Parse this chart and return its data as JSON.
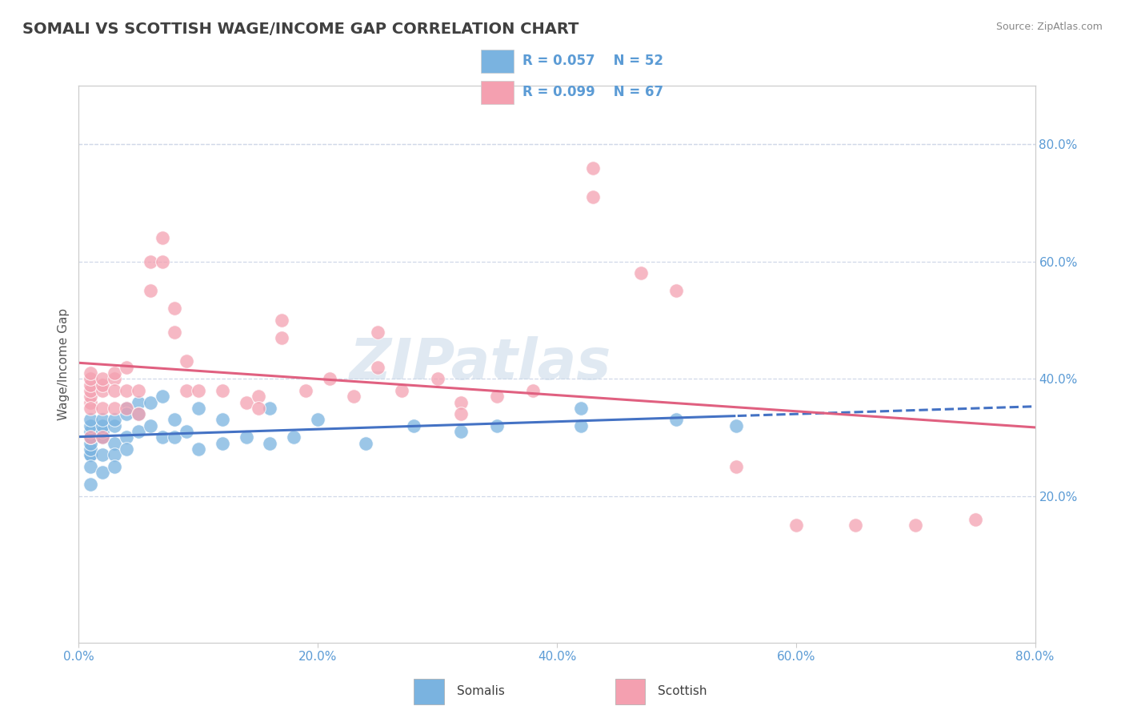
{
  "title": "SOMALI VS SCOTTISH WAGE/INCOME GAP CORRELATION CHART",
  "source": "Source: ZipAtlas.com",
  "ylabel": "Wage/Income Gap",
  "xlim": [
    0.0,
    0.8
  ],
  "ylim": [
    -0.05,
    0.9
  ],
  "xticks": [
    0.0,
    0.2,
    0.4,
    0.6,
    0.8
  ],
  "yticks_right": [
    0.2,
    0.4,
    0.6,
    0.8
  ],
  "background_color": "#ffffff",
  "watermark": "ZIPatlas",
  "watermark_color": "#c8d8e8",
  "title_color": "#404040",
  "title_fontsize": 14,
  "axis_color": "#5b9bd5",
  "somali_color": "#7ab3e0",
  "scottish_color": "#f4a0b0",
  "somali_line_color": "#4472c4",
  "scottish_line_color": "#e06080",
  "grid_color": "#d0d8e8",
  "somali_x": [
    0.01,
    0.01,
    0.01,
    0.01,
    0.01,
    0.01,
    0.01,
    0.01,
    0.01,
    0.01,
    0.02,
    0.02,
    0.02,
    0.02,
    0.02,
    0.02,
    0.02,
    0.03,
    0.03,
    0.03,
    0.03,
    0.03,
    0.04,
    0.04,
    0.04,
    0.04,
    0.05,
    0.05,
    0.05,
    0.06,
    0.06,
    0.07,
    0.07,
    0.08,
    0.08,
    0.09,
    0.1,
    0.1,
    0.12,
    0.12,
    0.14,
    0.16,
    0.16,
    0.18,
    0.2,
    0.24,
    0.28,
    0.32,
    0.35,
    0.42,
    0.42,
    0.5,
    0.55
  ],
  "somali_y": [
    0.27,
    0.27,
    0.28,
    0.29,
    0.3,
    0.31,
    0.32,
    0.33,
    0.25,
    0.22,
    0.3,
    0.3,
    0.31,
    0.32,
    0.33,
    0.27,
    0.24,
    0.32,
    0.33,
    0.29,
    0.27,
    0.25,
    0.35,
    0.34,
    0.3,
    0.28,
    0.36,
    0.34,
    0.31,
    0.36,
    0.32,
    0.37,
    0.3,
    0.33,
    0.3,
    0.31,
    0.35,
    0.28,
    0.33,
    0.29,
    0.3,
    0.35,
    0.29,
    0.3,
    0.33,
    0.29,
    0.32,
    0.31,
    0.32,
    0.35,
    0.32,
    0.33,
    0.32
  ],
  "scottish_x": [
    0.01,
    0.01,
    0.01,
    0.01,
    0.01,
    0.01,
    0.01,
    0.01,
    0.02,
    0.02,
    0.02,
    0.02,
    0.02,
    0.03,
    0.03,
    0.03,
    0.03,
    0.04,
    0.04,
    0.04,
    0.05,
    0.05,
    0.06,
    0.06,
    0.07,
    0.07,
    0.08,
    0.08,
    0.09,
    0.09,
    0.1,
    0.12,
    0.14,
    0.15,
    0.15,
    0.17,
    0.17,
    0.19,
    0.21,
    0.23,
    0.25,
    0.25,
    0.27,
    0.3,
    0.32,
    0.32,
    0.35,
    0.38,
    0.43,
    0.43,
    0.47,
    0.5,
    0.55,
    0.6,
    0.65,
    0.7,
    0.75
  ],
  "scottish_y": [
    0.36,
    0.37,
    0.38,
    0.39,
    0.4,
    0.41,
    0.35,
    0.3,
    0.38,
    0.39,
    0.4,
    0.35,
    0.3,
    0.4,
    0.41,
    0.38,
    0.35,
    0.42,
    0.38,
    0.35,
    0.38,
    0.34,
    0.6,
    0.55,
    0.64,
    0.6,
    0.52,
    0.48,
    0.43,
    0.38,
    0.38,
    0.38,
    0.36,
    0.37,
    0.35,
    0.5,
    0.47,
    0.38,
    0.4,
    0.37,
    0.48,
    0.42,
    0.38,
    0.4,
    0.36,
    0.34,
    0.37,
    0.38,
    0.76,
    0.71,
    0.58,
    0.55,
    0.25,
    0.15,
    0.15,
    0.15,
    0.16
  ]
}
